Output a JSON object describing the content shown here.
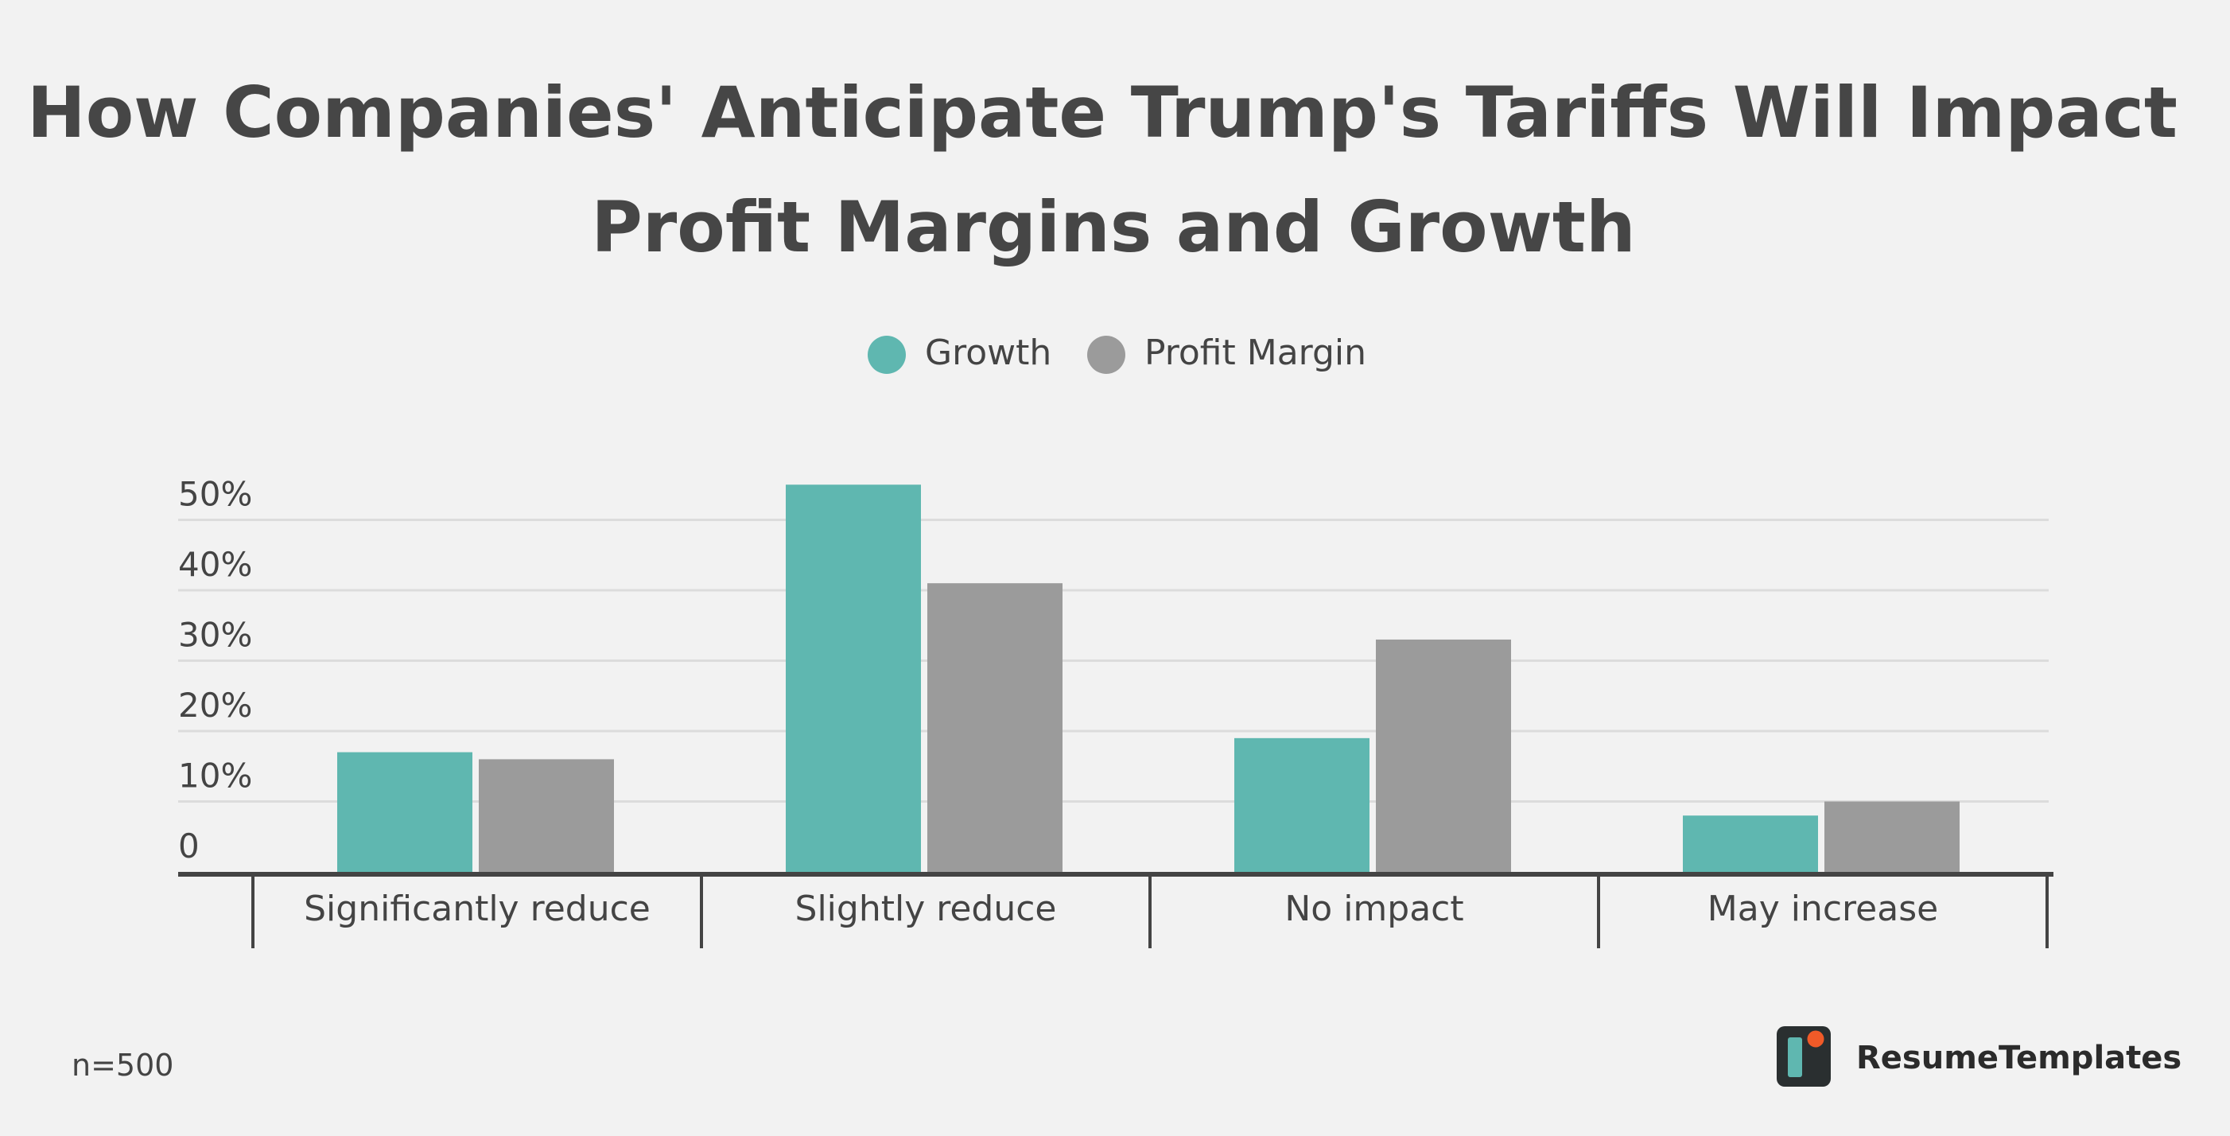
{
  "chart_data": {
    "type": "bar",
    "title_lines": [
      "How Companies' Anticipate Trump's Tariffs Will Impact",
      "Profit Margins and Growth"
    ],
    "categories": [
      "Significantly reduce",
      "Slightly reduce",
      "No impact",
      "May increase"
    ],
    "series": [
      {
        "name": "Growth",
        "color": "#5fb7b0",
        "values": [
          17,
          55,
          19,
          8
        ]
      },
      {
        "name": "Profit Margin",
        "color": "#9b9b9b",
        "values": [
          16,
          41,
          33,
          10
        ]
      }
    ],
    "yticks": [
      0,
      10,
      20,
      30,
      40,
      50
    ],
    "ytick_labels": [
      "0",
      "10%",
      "20%",
      "30%",
      "40%",
      "50%"
    ],
    "ylim": [
      0,
      55
    ],
    "grid": true,
    "legend_position": "top-center",
    "xlabel": "",
    "ylabel": ""
  },
  "footnote": "n=500",
  "brand": {
    "name": "ResumeTemplates",
    "logo_icon": "resume-templates-logo-icon",
    "logo_dark": "#2a2f30",
    "logo_teal": "#5fb7b0",
    "logo_orange": "#f05a28"
  },
  "colors": {
    "background": "#f2f2f2",
    "gridline": "#dcdcdc",
    "axis": "#444444"
  }
}
